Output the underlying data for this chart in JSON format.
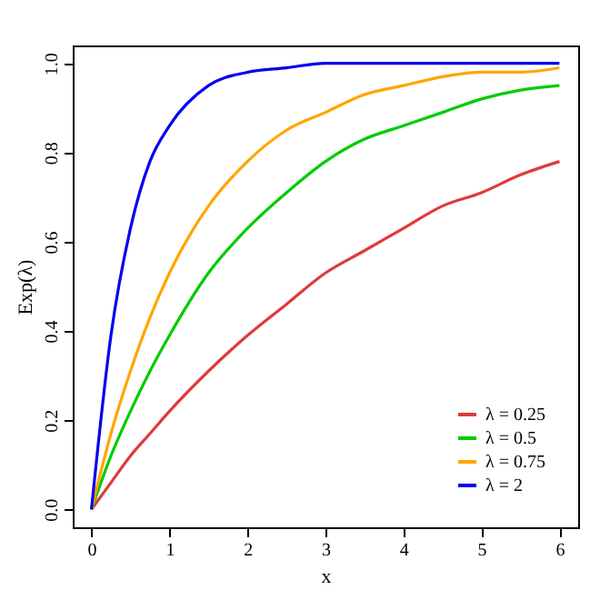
{
  "chart_data": {
    "type": "line",
    "xlabel": "x",
    "ylabel": "Exp(λ)",
    "x": [
      0,
      0.25,
      0.5,
      0.75,
      1,
      1.5,
      2,
      2.5,
      3,
      3.5,
      4,
      4.5,
      5,
      5.5,
      6
    ],
    "series": [
      {
        "name": "λ = 0.25",
        "color": "#df3a3a",
        "values": [
          0,
          0.06,
          0.12,
          0.17,
          0.22,
          0.31,
          0.39,
          0.46,
          0.53,
          0.58,
          0.63,
          0.68,
          0.71,
          0.75,
          0.78
        ]
      },
      {
        "name": "λ = 0.5",
        "color": "#00cc00",
        "values": [
          0,
          0.12,
          0.22,
          0.31,
          0.39,
          0.53,
          0.63,
          0.71,
          0.78,
          0.83,
          0.86,
          0.89,
          0.92,
          0.94,
          0.95
        ]
      },
      {
        "name": "λ = 0.75",
        "color": "#ffa500",
        "values": [
          0,
          0.17,
          0.31,
          0.43,
          0.53,
          0.68,
          0.78,
          0.85,
          0.89,
          0.93,
          0.95,
          0.97,
          0.98,
          0.98,
          0.99
        ]
      },
      {
        "name": "λ = 2",
        "color": "#0000ee",
        "values": [
          0,
          0.39,
          0.63,
          0.78,
          0.86,
          0.95,
          0.98,
          0.99,
          1.0,
          1.0,
          1.0,
          1.0,
          1.0,
          1.0,
          1.0
        ]
      }
    ],
    "xlim": [
      -0.24,
      6.24
    ],
    "ylim": [
      -0.04,
      1.04
    ],
    "xticks": [
      0,
      1,
      2,
      3,
      4,
      5,
      6
    ],
    "yticks": [
      {
        "value": 0,
        "label": "0.0"
      },
      0.2,
      0.4,
      0.6,
      0.8,
      {
        "value": 1,
        "label": "1.0"
      }
    ],
    "grid": false,
    "legend": "bottom right",
    "line_style": "solid"
  }
}
